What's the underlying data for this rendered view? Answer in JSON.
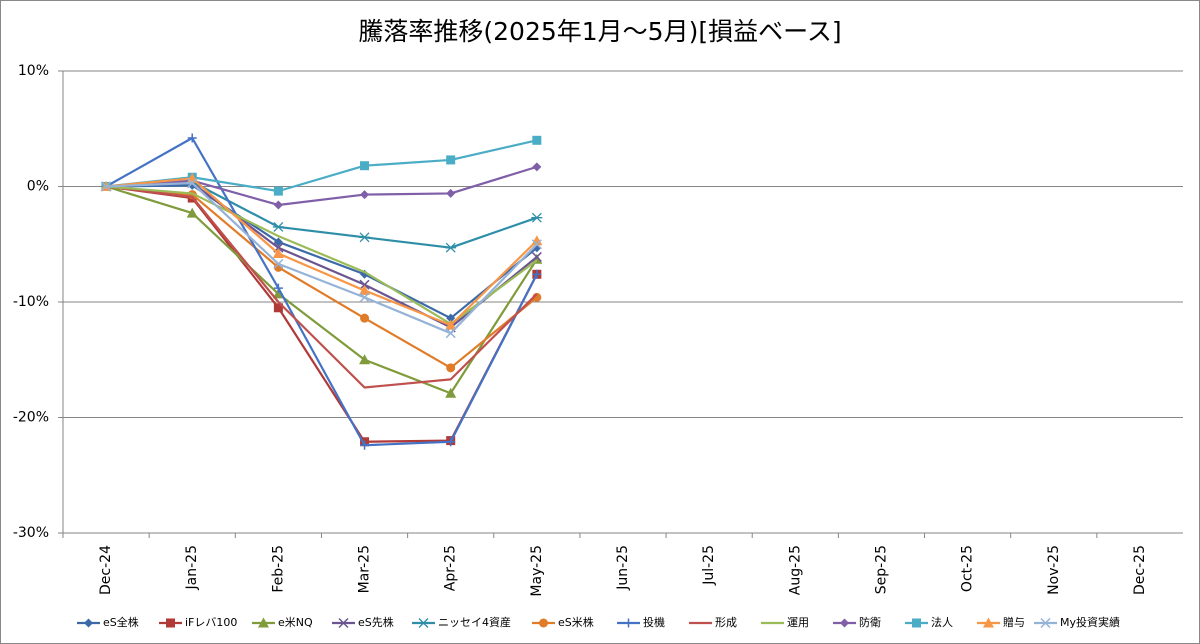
{
  "chart_data": {
    "type": "line",
    "title": "騰落率推移(2025年1月～5月)[損益ベース]",
    "categories": [
      "Dec-24",
      "Jan-25",
      "Feb-25",
      "Mar-25",
      "Apr-25",
      "May-25",
      "Jun-25",
      "Jul-25",
      "Aug-25",
      "Sep-25",
      "Oct-25",
      "Nov-25",
      "Dec-25"
    ],
    "ylim": [
      -30,
      10
    ],
    "yticks": [
      {
        "value": -30,
        "label": "-30%"
      },
      {
        "value": -20,
        "label": "-20%"
      },
      {
        "value": -10,
        "label": "-10%"
      },
      {
        "value": 0,
        "label": "0%"
      },
      {
        "value": 10,
        "label": "10%"
      }
    ],
    "grid": true,
    "legend": "bottom",
    "series": [
      {
        "name": "eS全株",
        "color": "#3c6aa8",
        "marker": "diamond",
        "values": [
          0,
          0.1,
          -4.8,
          -7.6,
          -11.4,
          -5.3,
          null,
          null,
          null,
          null,
          null,
          null,
          null
        ]
      },
      {
        "name": "iFレバ100",
        "color": "#b03a37",
        "marker": "square",
        "values": [
          0,
          -1.0,
          -10.5,
          -22.1,
          -22.0,
          -7.6,
          null,
          null,
          null,
          null,
          null,
          null,
          null
        ]
      },
      {
        "name": "e米NQ",
        "color": "#7f9b3b",
        "marker": "triangle",
        "values": [
          0,
          -2.3,
          -9.3,
          -15.0,
          -17.9,
          -6.3,
          null,
          null,
          null,
          null,
          null,
          null,
          null
        ]
      },
      {
        "name": "eS先株",
        "color": "#6b5590",
        "marker": "x",
        "values": [
          0,
          0.3,
          -5.3,
          -8.5,
          -12.2,
          -6.1,
          null,
          null,
          null,
          null,
          null,
          null,
          null
        ]
      },
      {
        "name": "ニッセイ4資産",
        "color": "#2e8ea8",
        "marker": "star",
        "values": [
          0,
          0.4,
          -3.5,
          -4.4,
          -5.3,
          -2.7,
          null,
          null,
          null,
          null,
          null,
          null,
          null
        ]
      },
      {
        "name": "eS米株",
        "color": "#e07b28",
        "marker": "circle",
        "values": [
          0,
          -0.7,
          -7.0,
          -11.4,
          -15.7,
          -9.6,
          null,
          null,
          null,
          null,
          null,
          null,
          null
        ]
      },
      {
        "name": "投機",
        "color": "#4472c4",
        "marker": "plus",
        "values": [
          0,
          4.2,
          -8.8,
          -22.4,
          -22.1,
          -7.6,
          null,
          null,
          null,
          null,
          null,
          null,
          null
        ]
      },
      {
        "name": "形成",
        "color": "#c0504d",
        "marker": "none",
        "values": [
          0,
          -0.9,
          -10.0,
          -17.4,
          -16.7,
          -9.3,
          null,
          null,
          null,
          null,
          null,
          null,
          null
        ]
      },
      {
        "name": "運用",
        "color": "#9bbb59",
        "marker": "none",
        "values": [
          0,
          -0.6,
          -4.3,
          -7.4,
          -11.9,
          -6.4,
          null,
          null,
          null,
          null,
          null,
          null,
          null
        ]
      },
      {
        "name": "防衛",
        "color": "#7f5fa8",
        "marker": "diamond",
        "values": [
          0,
          0.5,
          -1.6,
          -0.7,
          -0.6,
          1.7,
          null,
          null,
          null,
          null,
          null,
          null,
          null
        ]
      },
      {
        "name": "法人",
        "color": "#4bacc6",
        "marker": "square",
        "values": [
          0,
          0.8,
          -0.4,
          1.8,
          2.3,
          4.0,
          null,
          null,
          null,
          null,
          null,
          null,
          null
        ]
      },
      {
        "name": "贈与",
        "color": "#f79646",
        "marker": "triangle",
        "values": [
          0,
          0.7,
          -5.8,
          -9.0,
          -12.0,
          -4.7,
          null,
          null,
          null,
          null,
          null,
          null,
          null
        ]
      },
      {
        "name": "My投資実績",
        "color": "#95b3d7",
        "marker": "x",
        "values": [
          0,
          0.3,
          -6.7,
          -9.6,
          -12.7,
          -5.0,
          null,
          null,
          null,
          null,
          null,
          null,
          null
        ]
      }
    ]
  }
}
